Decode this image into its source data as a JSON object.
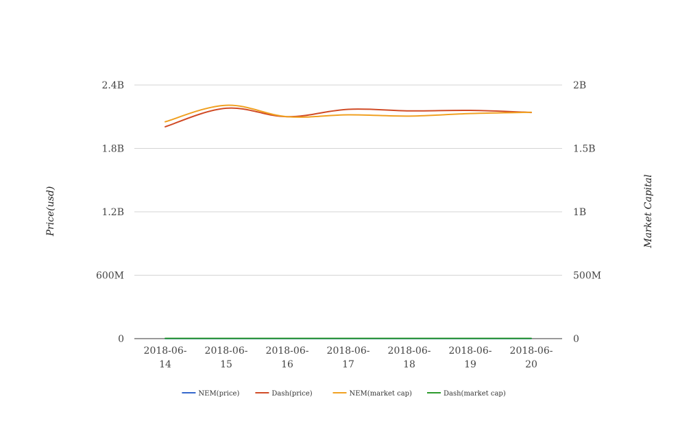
{
  "chart_data": {
    "type": "line",
    "categories": [
      [
        "2018-06-",
        "14"
      ],
      [
        "2018-06-",
        "15"
      ],
      [
        "2018-06-",
        "16"
      ],
      [
        "2018-06-",
        "17"
      ],
      [
        "2018-06-",
        "18"
      ],
      [
        "2018-06-",
        "19"
      ],
      [
        "2018-06-",
        "20"
      ]
    ],
    "y_left": {
      "label": "Price(usd)",
      "range": [
        0,
        2400000000
      ],
      "ticks": [
        0,
        600000000,
        1200000000,
        1800000000,
        2400000000
      ],
      "tick_labels": [
        "0",
        "600M",
        "1.2B",
        "1.8B",
        "2.4B"
      ]
    },
    "y_right": {
      "label": "Market Capital",
      "range": [
        0,
        2000000000
      ],
      "ticks": [
        0,
        500000000,
        1000000000,
        1500000000,
        2000000000
      ],
      "tick_labels": [
        "0",
        "500M",
        "1B",
        "1.5B",
        "2B"
      ]
    },
    "grid": true,
    "legend_position": "bottom",
    "series": [
      {
        "name": "NEM(price)",
        "axis": "left",
        "color": "#3366cc",
        "values": [
          0.19,
          0.22,
          0.2,
          0.21,
          0.2,
          0.2,
          0.2
        ]
      },
      {
        "name": "Dash(price)",
        "axis": "left",
        "color": "#d04a25",
        "values": [
          2005000000,
          2180000000,
          2100000000,
          2170000000,
          2155000000,
          2160000000,
          2140000000
        ]
      },
      {
        "name": "NEM(market cap)",
        "axis": "right",
        "color": "#f0a020",
        "values": [
          1710000000,
          1840000000,
          1750000000,
          1765000000,
          1755000000,
          1775000000,
          1785000000
        ]
      },
      {
        "name": "Dash(market cap)",
        "axis": "right",
        "color": "#2a9a2a",
        "values": [
          1740000,
          1800000,
          1760000,
          1780000,
          1770000,
          1770000,
          1770000
        ]
      }
    ]
  }
}
